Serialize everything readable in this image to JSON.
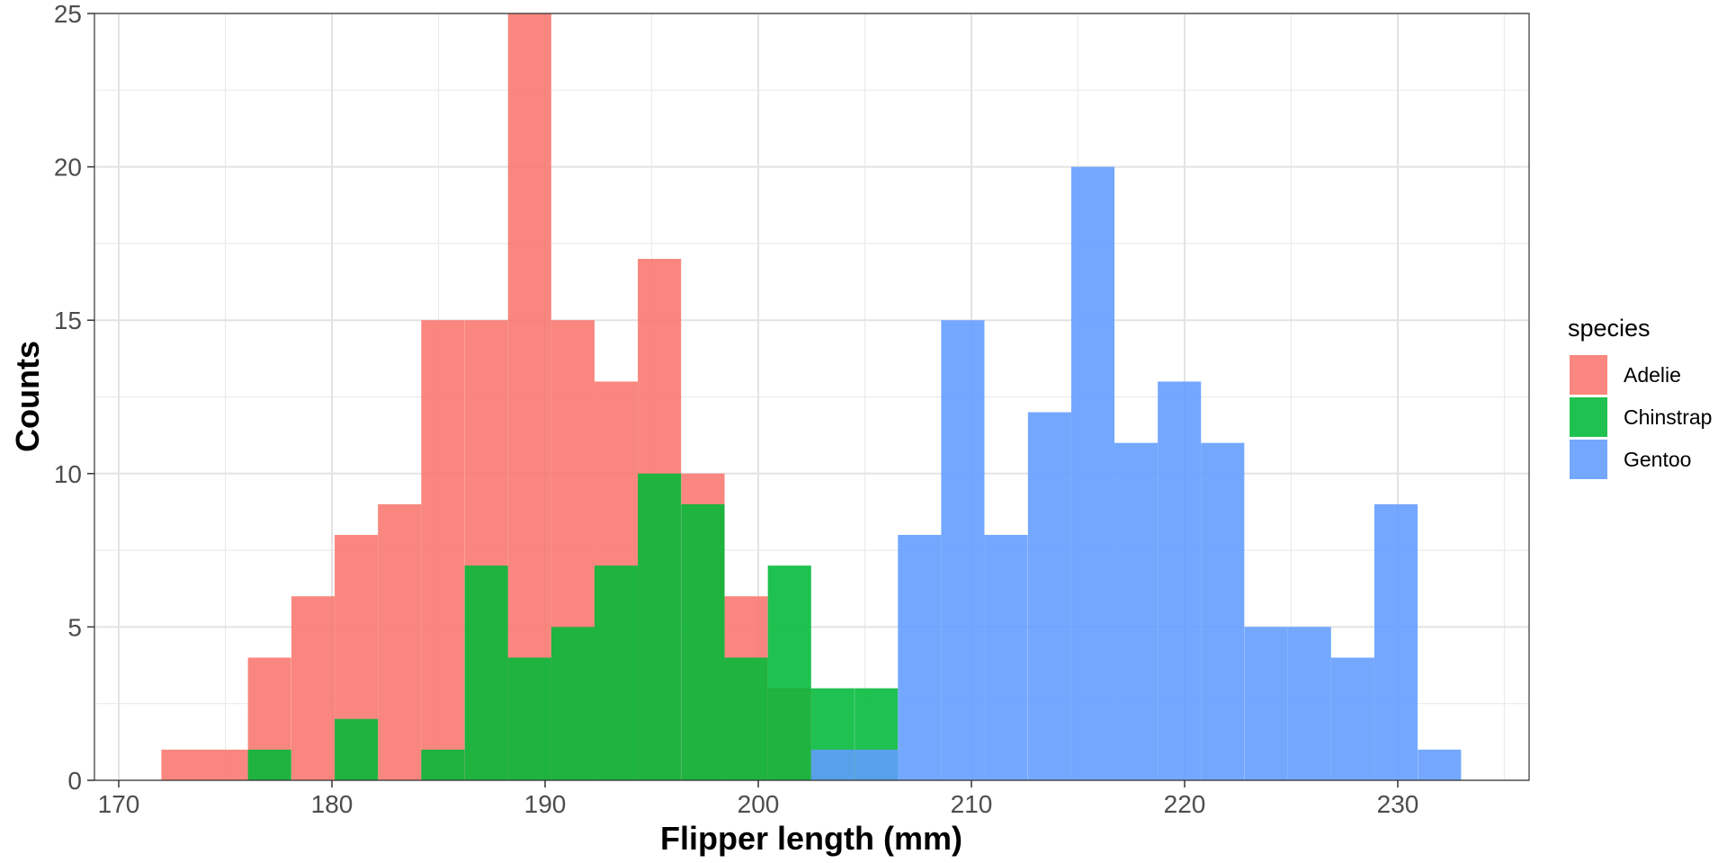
{
  "chart_data": {
    "type": "bar",
    "subtype": "overlapping histogram",
    "title": "",
    "xlabel": "Flipper length (mm)",
    "ylabel": "Counts",
    "xlim": [
      170,
      235
    ],
    "ylim": [
      0,
      25
    ],
    "x_ticks": [
      170,
      180,
      190,
      200,
      210,
      220,
      230
    ],
    "y_ticks": [
      0,
      5,
      10,
      15,
      20,
      25
    ],
    "bin_width": 2.03,
    "bin_starts": [
      172.0,
      174.03,
      176.06,
      178.1,
      180.13,
      182.16,
      184.19,
      186.23,
      188.26,
      190.29,
      192.32,
      194.35,
      196.39,
      198.42,
      200.45,
      202.48,
      204.52,
      206.55,
      208.58,
      210.61,
      212.65,
      214.68,
      216.71,
      218.74,
      220.77,
      222.81,
      224.84,
      226.87,
      228.9,
      230.94
    ],
    "grid": true,
    "legend_title": "species",
    "legend_position": "right",
    "series": [
      {
        "name": "Adelie",
        "color": "#F8766D",
        "values": [
          1,
          1,
          4,
          6,
          8,
          9,
          15,
          15,
          25,
          15,
          13,
          17,
          10,
          6,
          3,
          0,
          0,
          0,
          0,
          0,
          0,
          0,
          0,
          0,
          0,
          0,
          0,
          0,
          0,
          0
        ]
      },
      {
        "name": "Chinstrap",
        "color": "#00BA38",
        "values": [
          0,
          0,
          1,
          0,
          2,
          0,
          1,
          7,
          4,
          5,
          7,
          10,
          9,
          4,
          7,
          3,
          3,
          0,
          0,
          0,
          0,
          0,
          0,
          0,
          0,
          0,
          0,
          0,
          0,
          0
        ]
      },
      {
        "name": "Gentoo",
        "color": "#619CFF",
        "values": [
          0,
          0,
          0,
          0,
          0,
          0,
          0,
          0,
          0,
          0,
          0,
          0,
          0,
          0,
          0,
          1,
          1,
          8,
          15,
          8,
          12,
          20,
          11,
          13,
          11,
          5,
          5,
          4,
          9,
          1
        ]
      }
    ]
  }
}
